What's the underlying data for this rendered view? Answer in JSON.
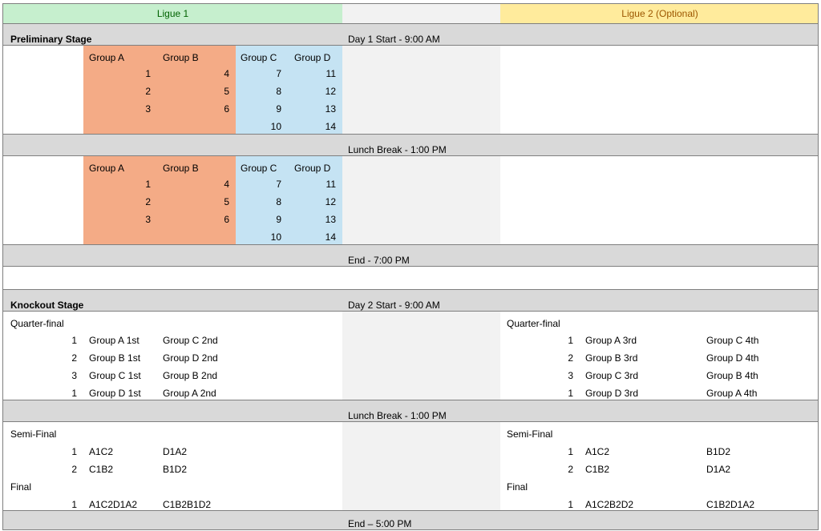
{
  "header": {
    "ligue1": "Ligue 1",
    "ligue2": "Ligue 2 (Optional)"
  },
  "colors": {
    "ligue1_header_bg": "#c6efce",
    "ligue2_header_bg": "#ffeb9c",
    "groups_ab_bg": "#f4ab86",
    "groups_cd_bg": "#c5e3f3",
    "separator_bg": "#d9d9d9"
  },
  "preliminary": {
    "title": "Preliminary Stage",
    "day_start": "Day 1 Start - 9:00 AM",
    "lunch": "Lunch Break - 1:00 PM",
    "end": "End - 7:00 PM",
    "group_labels": [
      "Group A",
      "Group B",
      "Group C",
      "Group D"
    ],
    "block1": {
      "group_a": [
        "1",
        "2",
        "3"
      ],
      "group_b": [
        "4",
        "5",
        "6"
      ],
      "group_c": [
        "7",
        "8",
        "9",
        "10"
      ],
      "group_d": [
        "11",
        "12",
        "13",
        "14"
      ]
    },
    "block2": {
      "group_a": [
        "1",
        "2",
        "3"
      ],
      "group_b": [
        "4",
        "5",
        "6"
      ],
      "group_c": [
        "7",
        "8",
        "9",
        "10"
      ],
      "group_d": [
        "11",
        "12",
        "13",
        "14"
      ]
    }
  },
  "knockout": {
    "title": "Knockout Stage",
    "day_start": "Day 2 Start - 9:00 AM",
    "lunch": "Lunch Break - 1:00 PM",
    "end": "End – 5:00 PM",
    "ligue1": {
      "qf_label": "Quarter-final",
      "qf": [
        {
          "num": "1",
          "home": "Group A 1st",
          "away": "Group C 2nd"
        },
        {
          "num": "2",
          "home": "Group B 1st",
          "away": "Group D 2nd"
        },
        {
          "num": "3",
          "home": "Group C 1st",
          "away": "Group B 2nd"
        },
        {
          "num": "1",
          "home": "Group D 1st",
          "away": "Group A 2nd"
        }
      ],
      "sf_label": "Semi-Final",
      "sf": [
        {
          "num": "1",
          "home": "A1C2",
          "away": "D1A2"
        },
        {
          "num": "2",
          "home": "C1B2",
          "away": "B1D2"
        }
      ],
      "final_label": "Final",
      "final": [
        {
          "num": "1",
          "home": "A1C2D1A2",
          "away": "C1B2B1D2"
        }
      ]
    },
    "ligue2": {
      "qf_label": "Quarter-final",
      "qf": [
        {
          "num": "1",
          "home": "Group A 3rd",
          "away": "Group C 4th"
        },
        {
          "num": "2",
          "home": "Group B 3rd",
          "away": "Group D 4th"
        },
        {
          "num": "3",
          "home": "Group C 3rd",
          "away": "Group B 4th"
        },
        {
          "num": "1",
          "home": "Group D 3rd",
          "away": "Group A 4th"
        }
      ],
      "sf_label": "Semi-Final",
      "sf": [
        {
          "num": "1",
          "home": "A1C2",
          "away": "B1D2"
        },
        {
          "num": "2",
          "home": "C1B2",
          "away": "D1A2"
        }
      ],
      "final_label": "Final",
      "final": [
        {
          "num": "1",
          "home": "A1C2B2D2",
          "away": "C1B2D1A2"
        }
      ]
    }
  }
}
